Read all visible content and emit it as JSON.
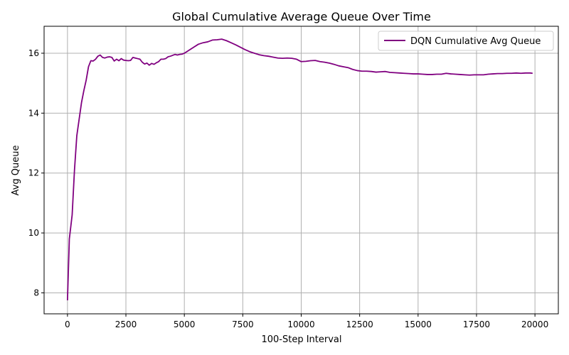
{
  "chart_data": {
    "type": "line",
    "title": "Global Cumulative Average Queue Over Time",
    "xlabel": "100-Step Interval",
    "ylabel": "Avg Queue",
    "xlim": [
      -1000,
      21000
    ],
    "ylim": [
      7.3,
      16.9
    ],
    "xticks": [
      0,
      2500,
      5000,
      7500,
      10000,
      12500,
      15000,
      17500,
      20000
    ],
    "yticks": [
      8,
      10,
      12,
      14,
      16
    ],
    "grid": true,
    "legend_position": "top-right",
    "series": [
      {
        "name": "DQN Cumulative Avg Queue",
        "color": "#800080",
        "points": [
          [
            0,
            7.75
          ],
          [
            80,
            9.8
          ],
          [
            200,
            10.6
          ],
          [
            300,
            12.1
          ],
          [
            400,
            13.25
          ],
          [
            500,
            13.8
          ],
          [
            600,
            14.35
          ],
          [
            700,
            14.75
          ],
          [
            800,
            15.1
          ],
          [
            900,
            15.55
          ],
          [
            1000,
            15.75
          ],
          [
            1100,
            15.74
          ],
          [
            1200,
            15.8
          ],
          [
            1300,
            15.9
          ],
          [
            1400,
            15.94
          ],
          [
            1500,
            15.86
          ],
          [
            1600,
            15.84
          ],
          [
            1700,
            15.87
          ],
          [
            1800,
            15.88
          ],
          [
            1900,
            15.86
          ],
          [
            2000,
            15.74
          ],
          [
            2100,
            15.8
          ],
          [
            2200,
            15.75
          ],
          [
            2300,
            15.82
          ],
          [
            2400,
            15.77
          ],
          [
            2500,
            15.76
          ],
          [
            2600,
            15.75
          ],
          [
            2700,
            15.76
          ],
          [
            2800,
            15.86
          ],
          [
            2900,
            15.84
          ],
          [
            3000,
            15.82
          ],
          [
            3100,
            15.8
          ],
          [
            3200,
            15.7
          ],
          [
            3300,
            15.64
          ],
          [
            3400,
            15.67
          ],
          [
            3500,
            15.6
          ],
          [
            3600,
            15.66
          ],
          [
            3700,
            15.63
          ],
          [
            3800,
            15.68
          ],
          [
            3900,
            15.72
          ],
          [
            4000,
            15.8
          ],
          [
            4100,
            15.8
          ],
          [
            4200,
            15.82
          ],
          [
            4300,
            15.88
          ],
          [
            4400,
            15.9
          ],
          [
            4500,
            15.93
          ],
          [
            4600,
            15.96
          ],
          [
            4700,
            15.94
          ],
          [
            4800,
            15.96
          ],
          [
            4900,
            15.97
          ],
          [
            5000,
            16.0
          ],
          [
            5200,
            16.1
          ],
          [
            5400,
            16.2
          ],
          [
            5600,
            16.3
          ],
          [
            5800,
            16.35
          ],
          [
            6000,
            16.38
          ],
          [
            6200,
            16.44
          ],
          [
            6400,
            16.45
          ],
          [
            6600,
            16.47
          ],
          [
            6800,
            16.42
          ],
          [
            7000,
            16.35
          ],
          [
            7200,
            16.28
          ],
          [
            7400,
            16.2
          ],
          [
            7600,
            16.12
          ],
          [
            7800,
            16.05
          ],
          [
            8000,
            16.0
          ],
          [
            8200,
            15.95
          ],
          [
            8400,
            15.92
          ],
          [
            8600,
            15.9
          ],
          [
            8800,
            15.87
          ],
          [
            9000,
            15.84
          ],
          [
            9200,
            15.83
          ],
          [
            9400,
            15.84
          ],
          [
            9600,
            15.83
          ],
          [
            9800,
            15.8
          ],
          [
            10000,
            15.72
          ],
          [
            10200,
            15.73
          ],
          [
            10400,
            15.75
          ],
          [
            10600,
            15.76
          ],
          [
            10800,
            15.72
          ],
          [
            11000,
            15.7
          ],
          [
            11200,
            15.67
          ],
          [
            11400,
            15.63
          ],
          [
            11600,
            15.58
          ],
          [
            11800,
            15.55
          ],
          [
            12000,
            15.52
          ],
          [
            12200,
            15.46
          ],
          [
            12400,
            15.42
          ],
          [
            12600,
            15.4
          ],
          [
            12800,
            15.4
          ],
          [
            13000,
            15.39
          ],
          [
            13200,
            15.37
          ],
          [
            13400,
            15.38
          ],
          [
            13600,
            15.39
          ],
          [
            13800,
            15.36
          ],
          [
            14000,
            15.35
          ],
          [
            14200,
            15.34
          ],
          [
            14400,
            15.33
          ],
          [
            14600,
            15.32
          ],
          [
            14800,
            15.31
          ],
          [
            15000,
            15.31
          ],
          [
            15200,
            15.3
          ],
          [
            15400,
            15.29
          ],
          [
            15600,
            15.29
          ],
          [
            15800,
            15.3
          ],
          [
            16000,
            15.3
          ],
          [
            16200,
            15.33
          ],
          [
            16400,
            15.31
          ],
          [
            16600,
            15.3
          ],
          [
            16800,
            15.29
          ],
          [
            17000,
            15.28
          ],
          [
            17200,
            15.27
          ],
          [
            17400,
            15.28
          ],
          [
            17600,
            15.28
          ],
          [
            17800,
            15.28
          ],
          [
            18000,
            15.3
          ],
          [
            18200,
            15.31
          ],
          [
            18400,
            15.32
          ],
          [
            18600,
            15.32
          ],
          [
            18800,
            15.33
          ],
          [
            19000,
            15.33
          ],
          [
            19200,
            15.34
          ],
          [
            19400,
            15.33
          ],
          [
            19600,
            15.34
          ],
          [
            19800,
            15.34
          ],
          [
            19900,
            15.33
          ]
        ]
      }
    ]
  }
}
